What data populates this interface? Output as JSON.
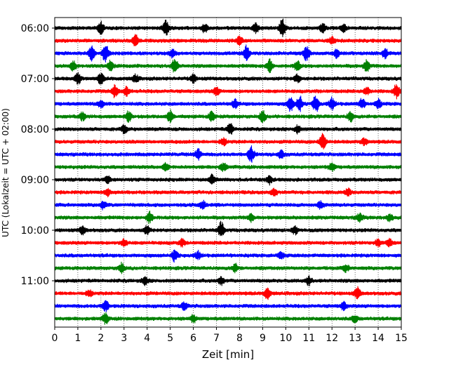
{
  "chart_data": {
    "type": "line",
    "title": "",
    "xlabel": "Zeit  [min]",
    "ylabel": "UTC (Lokalzeit = UTC + 02:00)",
    "xlim": [
      0,
      15
    ],
    "x_ticks": [
      "0",
      "1",
      "2",
      "3",
      "4",
      "5",
      "6",
      "7",
      "8",
      "9",
      "10",
      "11",
      "12",
      "13",
      "14",
      "15"
    ],
    "y_tick_labels": [
      "06:00",
      "07:00",
      "08:00",
      "09:00",
      "10:00",
      "11:00"
    ],
    "grid": "vertical dotted lines at each minute",
    "trace_interval_min": 15,
    "trace_start": "06:00",
    "trace_count": 24,
    "colors": [
      "#000000",
      "#ff0000",
      "#0000ff",
      "#008000"
    ],
    "series": [
      {
        "start": "06:00",
        "color": "#000000",
        "events": [
          [
            2.0,
            1.2
          ],
          [
            4.8,
            1.6
          ],
          [
            6.5,
            1.0
          ],
          [
            8.7,
            1.0
          ],
          [
            9.85,
            2.0
          ],
          [
            11.6,
            0.9
          ],
          [
            12.5,
            0.9
          ]
        ]
      },
      {
        "start": "06:15",
        "color": "#ff0000",
        "events": [
          [
            3.5,
            1.2
          ],
          [
            8.0,
            0.8
          ],
          [
            12.0,
            0.7
          ]
        ]
      },
      {
        "start": "06:30",
        "color": "#0000ff",
        "events": [
          [
            1.6,
            1.6
          ],
          [
            2.2,
            2.0
          ],
          [
            5.1,
            0.9
          ],
          [
            8.3,
            1.6
          ],
          [
            10.9,
            1.6
          ],
          [
            12.2,
            0.9
          ],
          [
            14.3,
            1.0
          ]
        ]
      },
      {
        "start": "06:45",
        "color": "#008000",
        "events": [
          [
            0.8,
            1.0
          ],
          [
            2.4,
            1.1
          ],
          [
            5.2,
            1.5
          ],
          [
            9.3,
            1.4
          ],
          [
            10.5,
            1.1
          ],
          [
            13.5,
            1.2
          ]
        ]
      },
      {
        "start": "07:00",
        "color": "#000000",
        "events": [
          [
            1.0,
            1.2
          ],
          [
            2.0,
            1.1
          ],
          [
            3.5,
            0.8
          ],
          [
            6.0,
            0.8
          ],
          [
            10.5,
            0.8
          ]
        ]
      },
      {
        "start": "07:15",
        "color": "#ff0000",
        "events": [
          [
            2.6,
            1.2
          ],
          [
            3.1,
            0.9
          ],
          [
            7.0,
            0.8
          ],
          [
            13.5,
            0.8
          ],
          [
            14.8,
            1.5
          ]
        ]
      },
      {
        "start": "07:30",
        "color": "#0000ff",
        "events": [
          [
            2.0,
            0.8
          ],
          [
            7.8,
            0.8
          ],
          [
            10.2,
            1.5
          ],
          [
            10.6,
            1.6
          ],
          [
            11.3,
            1.8
          ],
          [
            12.0,
            1.2
          ],
          [
            13.3,
            1.0
          ],
          [
            14.0,
            0.9
          ]
        ]
      },
      {
        "start": "07:45",
        "color": "#008000",
        "events": [
          [
            1.2,
            0.8
          ],
          [
            3.2,
            1.0
          ],
          [
            5.0,
            1.3
          ],
          [
            6.8,
            1.0
          ],
          [
            9.0,
            1.2
          ],
          [
            12.8,
            1.0
          ]
        ]
      },
      {
        "start": "08:00",
        "color": "#000000",
        "events": [
          [
            3.0,
            0.8
          ],
          [
            7.6,
            1.2
          ],
          [
            10.5,
            0.8
          ]
        ]
      },
      {
        "start": "08:15",
        "color": "#ff0000",
        "events": [
          [
            7.3,
            0.8
          ],
          [
            11.6,
            2.0
          ],
          [
            13.4,
            0.7
          ]
        ]
      },
      {
        "start": "08:30",
        "color": "#0000ff",
        "events": [
          [
            6.2,
            1.2
          ],
          [
            8.5,
            1.7
          ],
          [
            9.8,
            0.8
          ]
        ]
      },
      {
        "start": "08:45",
        "color": "#008000",
        "events": [
          [
            4.8,
            0.8
          ],
          [
            7.3,
            0.9
          ],
          [
            12.0,
            0.8
          ]
        ]
      },
      {
        "start": "09:00",
        "color": "#000000",
        "events": [
          [
            2.3,
            0.7
          ],
          [
            6.8,
            1.0
          ],
          [
            9.3,
            0.8
          ]
        ]
      },
      {
        "start": "09:15",
        "color": "#ff0000",
        "events": [
          [
            2.3,
            0.8
          ],
          [
            9.5,
            0.8
          ],
          [
            12.7,
            0.7
          ]
        ]
      },
      {
        "start": "09:30",
        "color": "#0000ff",
        "events": [
          [
            2.1,
            0.8
          ],
          [
            6.4,
            0.8
          ],
          [
            11.5,
            0.7
          ]
        ]
      },
      {
        "start": "09:45",
        "color": "#008000",
        "events": [
          [
            4.1,
            1.2
          ],
          [
            8.5,
            0.8
          ],
          [
            13.2,
            0.9
          ],
          [
            14.5,
            0.8
          ]
        ]
      },
      {
        "start": "10:00",
        "color": "#000000",
        "events": [
          [
            1.2,
            0.8
          ],
          [
            4.0,
            0.9
          ],
          [
            7.2,
            1.6
          ],
          [
            10.4,
            0.8
          ]
        ]
      },
      {
        "start": "10:15",
        "color": "#ff0000",
        "events": [
          [
            3.0,
            0.8
          ],
          [
            5.5,
            0.7
          ],
          [
            14.0,
            0.7
          ],
          [
            14.5,
            0.8
          ]
        ]
      },
      {
        "start": "10:30",
        "color": "#0000ff",
        "events": [
          [
            5.2,
            1.3
          ],
          [
            6.2,
            0.8
          ],
          [
            9.8,
            0.7
          ]
        ]
      },
      {
        "start": "10:45",
        "color": "#008000",
        "events": [
          [
            2.9,
            1.0
          ],
          [
            7.8,
            0.8
          ],
          [
            12.6,
            0.7
          ]
        ]
      },
      {
        "start": "11:00",
        "color": "#000000",
        "events": [
          [
            3.9,
            0.8
          ],
          [
            7.2,
            0.8
          ],
          [
            11.0,
            0.8
          ]
        ]
      },
      {
        "start": "11:15",
        "color": "#ff0000",
        "events": [
          [
            9.2,
            1.1
          ],
          [
            13.1,
            1.2
          ],
          [
            1.5,
            0.7
          ]
        ]
      },
      {
        "start": "11:30",
        "color": "#0000ff",
        "events": [
          [
            2.2,
            1.2
          ],
          [
            5.6,
            0.8
          ],
          [
            12.5,
            0.8
          ]
        ]
      },
      {
        "start": "11:45",
        "color": "#008000",
        "events": [
          [
            2.2,
            1.1
          ],
          [
            6.0,
            0.7
          ],
          [
            13.0,
            0.7
          ]
        ]
      }
    ]
  }
}
